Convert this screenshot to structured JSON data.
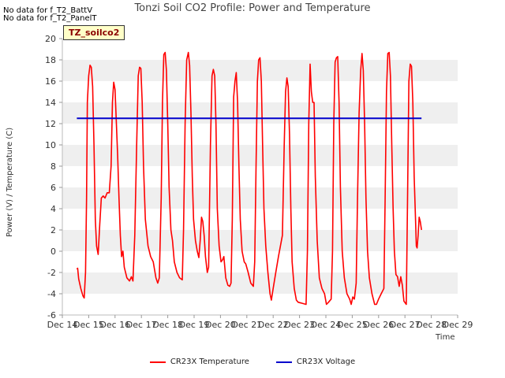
{
  "notes": [
    "No data for f_T2_BattV",
    "No data for f_T2_PanelT"
  ],
  "badge": "TZ_soilco2",
  "chart_data": {
    "type": "line",
    "title": "Tonzi Soil CO2 Profile: Power and Temperature",
    "xlabel": "Time",
    "ylabel": "Power (V) / Temperature (C)",
    "xlim": [
      14,
      29
    ],
    "ylim": [
      -6,
      20
    ],
    "grid": "horizontal bands",
    "legend_position": "bottom",
    "x_ticks": [
      {
        "x": 14,
        "label": "Dec 14"
      },
      {
        "x": 15,
        "label": "Dec 15"
      },
      {
        "x": 16,
        "label": "Dec 16"
      },
      {
        "x": 17,
        "label": "Dec 17"
      },
      {
        "x": 18,
        "label": "Dec 18"
      },
      {
        "x": 19,
        "label": "Dec 19"
      },
      {
        "x": 20,
        "label": "Dec 20"
      },
      {
        "x": 21,
        "label": "Dec 21"
      },
      {
        "x": 22,
        "label": "Dec 22"
      },
      {
        "x": 23,
        "label": "Dec 23"
      },
      {
        "x": 24,
        "label": "Dec 24"
      },
      {
        "x": 25,
        "label": "Dec 25"
      },
      {
        "x": 26,
        "label": "Dec 26"
      },
      {
        "x": 27,
        "label": "Dec 27"
      },
      {
        "x": 28,
        "label": "Dec 28"
      },
      {
        "x": 29,
        "label": "Dec 29"
      }
    ],
    "y_ticks": [
      -6,
      -4,
      -2,
      0,
      2,
      4,
      6,
      8,
      10,
      12,
      14,
      16,
      18,
      20
    ],
    "series": [
      {
        "name": "CR23X Temperature",
        "color": "#ff0000",
        "points": [
          [
            14.55,
            -1.7
          ],
          [
            14.58,
            -1.6
          ],
          [
            14.62,
            -2.6
          ],
          [
            14.7,
            -3.5
          ],
          [
            14.78,
            -4.2
          ],
          [
            14.83,
            -4.4
          ],
          [
            14.88,
            -2.0
          ],
          [
            14.92,
            5.0
          ],
          [
            14.95,
            14.0
          ],
          [
            15.0,
            16.5
          ],
          [
            15.05,
            17.5
          ],
          [
            15.1,
            17.3
          ],
          [
            15.15,
            15.5
          ],
          [
            15.2,
            10.0
          ],
          [
            15.25,
            3.0
          ],
          [
            15.3,
            0.5
          ],
          [
            15.36,
            -0.3
          ],
          [
            15.42,
            2.5
          ],
          [
            15.48,
            5.0
          ],
          [
            15.55,
            5.2
          ],
          [
            15.62,
            5.0
          ],
          [
            15.7,
            5.5
          ],
          [
            15.78,
            5.5
          ],
          [
            15.85,
            8.0
          ],
          [
            15.9,
            14.0
          ],
          [
            15.95,
            15.9
          ],
          [
            16.0,
            15.2
          ],
          [
            16.05,
            12.0
          ],
          [
            16.1,
            9.0
          ],
          [
            16.15,
            5.0
          ],
          [
            16.2,
            1.5
          ],
          [
            16.25,
            -0.5
          ],
          [
            16.3,
            0.0
          ],
          [
            16.35,
            -1.5
          ],
          [
            16.45,
            -2.5
          ],
          [
            16.55,
            -2.8
          ],
          [
            16.62,
            -2.4
          ],
          [
            16.68,
            -2.8
          ],
          [
            16.75,
            1.5
          ],
          [
            16.82,
            10.0
          ],
          [
            16.88,
            16.5
          ],
          [
            16.93,
            17.3
          ],
          [
            16.98,
            17.2
          ],
          [
            17.03,
            14.0
          ],
          [
            17.08,
            8.0
          ],
          [
            17.15,
            3.0
          ],
          [
            17.25,
            0.5
          ],
          [
            17.35,
            -0.5
          ],
          [
            17.45,
            -1.0
          ],
          [
            17.55,
            -2.5
          ],
          [
            17.62,
            -3.0
          ],
          [
            17.68,
            -2.5
          ],
          [
            17.75,
            5.0
          ],
          [
            17.8,
            14.0
          ],
          [
            17.85,
            18.5
          ],
          [
            17.9,
            18.7
          ],
          [
            17.95,
            17.0
          ],
          [
            18.0,
            12.0
          ],
          [
            18.05,
            6.0
          ],
          [
            18.12,
            2.0
          ],
          [
            18.18,
            1.0
          ],
          [
            18.25,
            -1.0
          ],
          [
            18.35,
            -2.0
          ],
          [
            18.45,
            -2.5
          ],
          [
            18.55,
            -2.7
          ],
          [
            18.6,
            2.0
          ],
          [
            18.66,
            12.0
          ],
          [
            18.72,
            18.0
          ],
          [
            18.78,
            18.7
          ],
          [
            18.83,
            17.5
          ],
          [
            18.88,
            13.0
          ],
          [
            18.93,
            7.0
          ],
          [
            18.98,
            3.0
          ],
          [
            19.05,
            1.0
          ],
          [
            19.12,
            0.0
          ],
          [
            19.18,
            -0.6
          ],
          [
            19.23,
            1.0
          ],
          [
            19.28,
            3.2
          ],
          [
            19.33,
            2.8
          ],
          [
            19.38,
            1.5
          ],
          [
            19.43,
            -0.5
          ],
          [
            19.5,
            -2.0
          ],
          [
            19.55,
            -1.5
          ],
          [
            19.62,
            10.0
          ],
          [
            19.68,
            16.5
          ],
          [
            19.73,
            17.1
          ],
          [
            19.78,
            16.5
          ],
          [
            19.83,
            12.0
          ],
          [
            19.88,
            4.0
          ],
          [
            19.95,
            0.5
          ],
          [
            20.02,
            -1.0
          ],
          [
            20.08,
            -0.8
          ],
          [
            20.13,
            -0.5
          ],
          [
            20.2,
            -2.5
          ],
          [
            20.28,
            -3.2
          ],
          [
            20.35,
            -3.3
          ],
          [
            20.4,
            -3.0
          ],
          [
            20.45,
            3.0
          ],
          [
            20.5,
            14.5
          ],
          [
            20.55,
            16.0
          ],
          [
            20.6,
            16.8
          ],
          [
            20.65,
            14.0
          ],
          [
            20.7,
            8.0
          ],
          [
            20.75,
            3.0
          ],
          [
            20.82,
            0.0
          ],
          [
            20.9,
            -1.0
          ],
          [
            20.96,
            -1.2
          ],
          [
            21.05,
            -2.0
          ],
          [
            21.15,
            -3.0
          ],
          [
            21.25,
            -3.3
          ],
          [
            21.3,
            -1.0
          ],
          [
            21.35,
            8.0
          ],
          [
            21.4,
            16.0
          ],
          [
            21.45,
            18.0
          ],
          [
            21.5,
            18.2
          ],
          [
            21.55,
            16.0
          ],
          [
            21.6,
            10.0
          ],
          [
            21.65,
            4.0
          ],
          [
            21.72,
            0.5
          ],
          [
            21.8,
            -2.0
          ],
          [
            21.88,
            -4.0
          ],
          [
            21.93,
            -4.6
          ],
          [
            22.0,
            -3.5
          ],
          [
            22.1,
            -2.0
          ],
          [
            22.2,
            -0.5
          ],
          [
            22.35,
            1.5
          ],
          [
            22.42,
            10.0
          ],
          [
            22.47,
            15.0
          ],
          [
            22.52,
            16.3
          ],
          [
            22.57,
            15.5
          ],
          [
            22.62,
            11.0
          ],
          [
            22.67,
            4.0
          ],
          [
            22.72,
            -1.0
          ],
          [
            22.8,
            -3.5
          ],
          [
            22.88,
            -4.6
          ],
          [
            22.95,
            -4.8
          ],
          [
            23.1,
            -4.9
          ],
          [
            23.25,
            -5.0
          ],
          [
            23.3,
            0.0
          ],
          [
            23.35,
            12.0
          ],
          [
            23.4,
            17.6
          ],
          [
            23.45,
            15.0
          ],
          [
            23.5,
            14.0
          ],
          [
            23.55,
            14.0
          ],
          [
            23.6,
            7.0
          ],
          [
            23.67,
            1.0
          ],
          [
            23.75,
            -2.5
          ],
          [
            23.85,
            -3.5
          ],
          [
            23.95,
            -4.0
          ],
          [
            24.02,
            -5.0
          ],
          [
            24.1,
            -4.8
          ],
          [
            24.2,
            -4.5
          ],
          [
            24.25,
            0.0
          ],
          [
            24.3,
            12.0
          ],
          [
            24.35,
            17.8
          ],
          [
            24.4,
            18.2
          ],
          [
            24.45,
            18.3
          ],
          [
            24.5,
            14.0
          ],
          [
            24.55,
            6.0
          ],
          [
            24.62,
            0.0
          ],
          [
            24.7,
            -2.5
          ],
          [
            24.8,
            -4.0
          ],
          [
            24.9,
            -4.5
          ],
          [
            24.96,
            -5.0
          ],
          [
            25.02,
            -4.3
          ],
          [
            25.08,
            -4.5
          ],
          [
            25.15,
            -3.0
          ],
          [
            25.2,
            5.0
          ],
          [
            25.26,
            13.0
          ],
          [
            25.32,
            17.0
          ],
          [
            25.37,
            18.6
          ],
          [
            25.42,
            17.0
          ],
          [
            25.47,
            12.0
          ],
          [
            25.52,
            5.0
          ],
          [
            25.58,
            0.0
          ],
          [
            25.65,
            -2.5
          ],
          [
            25.75,
            -4.0
          ],
          [
            25.85,
            -5.0
          ],
          [
            25.92,
            -5.0
          ],
          [
            26.0,
            -4.5
          ],
          [
            26.1,
            -4.0
          ],
          [
            26.2,
            -3.5
          ],
          [
            26.25,
            5.0
          ],
          [
            26.3,
            15.0
          ],
          [
            26.35,
            18.6
          ],
          [
            26.4,
            18.7
          ],
          [
            26.45,
            16.5
          ],
          [
            26.5,
            10.0
          ],
          [
            26.55,
            4.0
          ],
          [
            26.6,
            0.0
          ],
          [
            26.66,
            -2.2
          ],
          [
            26.72,
            -2.4
          ],
          [
            26.78,
            -3.3
          ],
          [
            26.84,
            -2.4
          ],
          [
            26.9,
            -3.2
          ],
          [
            26.96,
            -4.7
          ],
          [
            27.05,
            -5.0
          ],
          [
            27.1,
            5.0
          ],
          [
            27.15,
            16.0
          ],
          [
            27.2,
            17.6
          ],
          [
            27.25,
            17.4
          ],
          [
            27.3,
            14.0
          ],
          [
            27.35,
            7.0
          ],
          [
            27.4,
            3.0
          ],
          [
            27.43,
            0.5
          ],
          [
            27.46,
            0.3
          ],
          [
            27.5,
            1.5
          ],
          [
            27.54,
            3.2
          ],
          [
            27.58,
            2.8
          ],
          [
            27.63,
            2.0
          ]
        ]
      },
      {
        "name": "CR23X Voltage",
        "color": "#0000cc",
        "points": [
          [
            14.55,
            12.5
          ],
          [
            27.63,
            12.5
          ]
        ]
      }
    ]
  }
}
